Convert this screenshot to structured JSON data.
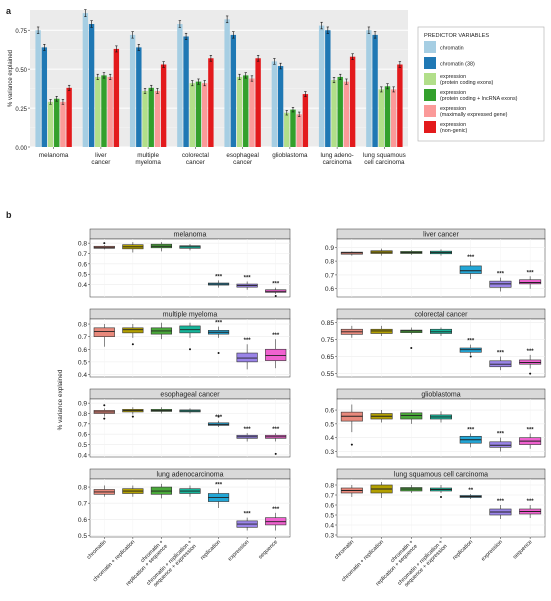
{
  "panel_a": {
    "label": "a",
    "ylabel": "% variance explained",
    "legend_title": "PREDICTOR VARIABLES",
    "legend_items": [
      {
        "name": "chromatin",
        "color": "#a6cee3"
      },
      {
        "name": "chromatin (38)",
        "color": "#1f78b4"
      },
      {
        "name": "expression\n(protein coding exons)",
        "color": "#b2df8a"
      },
      {
        "name": "expression\n(protein coding + lncRNA exons)",
        "color": "#33a02c"
      },
      {
        "name": "expression\n(maximally expressed gene)",
        "color": "#fb9a99"
      },
      {
        "name": "expression\n(non-genic)",
        "color": "#e31a1c"
      }
    ]
  },
  "panel_b": {
    "label": "b",
    "ylabel": "% variance explained",
    "groups": [
      "chromatin",
      "chromatin + replication",
      "chromatin +\nreplication + sequence",
      "chromatin + replication +\nsequence + expression",
      "replication",
      "expression",
      "sequence"
    ],
    "group_colors": [
      "#e8897c",
      "#b3a000",
      "#4aa83a",
      "#16b59a",
      "#22a6d6",
      "#9a84e8",
      "#f062d0"
    ],
    "sig_mark": "***",
    "sig_mark_lsc_replication": "**"
  },
  "chart_data": [
    {
      "type": "bar",
      "title": "",
      "ylabel": "% variance explained",
      "ylim": [
        0,
        0.88
      ],
      "yticks": [
        "0.00",
        "0.25",
        "0.50",
        "0.75"
      ],
      "categories": [
        "melanoma",
        "liver\ncancer",
        "multiple\nmyeloma",
        "colorectal\ncancer",
        "esophageal\ncancer",
        "glioblastoma",
        "lung adeno-\ncarcinoma",
        "lung squamous\ncell carcinoma"
      ],
      "series": [
        {
          "name": "chromatin",
          "values": [
            0.75,
            0.86,
            0.72,
            0.79,
            0.82,
            0.55,
            0.78,
            0.75
          ]
        },
        {
          "name": "chromatin (38)",
          "values": [
            0.64,
            0.79,
            0.64,
            0.71,
            0.72,
            0.52,
            0.75,
            0.72
          ]
        },
        {
          "name": "expression (protein coding exons)",
          "values": [
            0.29,
            0.45,
            0.36,
            0.41,
            0.45,
            0.22,
            0.43,
            0.37
          ]
        },
        {
          "name": "expression (protein coding + lncRNA exons)",
          "values": [
            0.31,
            0.46,
            0.38,
            0.42,
            0.46,
            0.24,
            0.45,
            0.39
          ]
        },
        {
          "name": "expression (maximally expressed gene)",
          "values": [
            0.29,
            0.45,
            0.36,
            0.41,
            0.44,
            0.21,
            0.42,
            0.37
          ]
        },
        {
          "name": "expression (non-genic)",
          "values": [
            0.38,
            0.63,
            0.53,
            0.57,
            0.57,
            0.34,
            0.58,
            0.53
          ]
        }
      ],
      "legend": "right",
      "grid": true
    },
    {
      "type": "box",
      "panels": [
        {
          "title": "melanoma",
          "yticks": [
            "0.4",
            "0.5",
            "0.6",
            "0.7",
            "0.8"
          ],
          "ylim": [
            0.28,
            0.84
          ],
          "boxes": [
            {
              "min": 0.74,
              "q1": 0.75,
              "median": 0.76,
              "q3": 0.77,
              "max": 0.78,
              "outliers": [
                0.8
              ]
            },
            {
              "min": 0.71,
              "q1": 0.745,
              "median": 0.765,
              "q3": 0.785,
              "max": 0.81,
              "outliers": []
            },
            {
              "min": 0.72,
              "q1": 0.755,
              "median": 0.77,
              "q3": 0.79,
              "max": 0.81,
              "outliers": []
            },
            {
              "min": 0.73,
              "q1": 0.75,
              "median": 0.765,
              "q3": 0.775,
              "max": 0.79,
              "outliers": []
            },
            {
              "min": 0.37,
              "q1": 0.395,
              "median": 0.405,
              "q3": 0.415,
              "max": 0.44,
              "outliers": []
            },
            {
              "min": 0.35,
              "q1": 0.375,
              "median": 0.39,
              "q3": 0.405,
              "max": 0.43,
              "outliers": []
            },
            {
              "min": 0.31,
              "q1": 0.325,
              "median": 0.335,
              "q3": 0.35,
              "max": 0.37,
              "outliers": [
                0.29
              ]
            }
          ]
        },
        {
          "title": "liver cancer",
          "yticks": [
            "0.6",
            "0.7",
            "0.8",
            "0.9"
          ],
          "ylim": [
            0.54,
            0.96
          ],
          "boxes": [
            {
              "min": 0.84,
              "q1": 0.85,
              "median": 0.86,
              "q3": 0.865,
              "max": 0.87,
              "outliers": []
            },
            {
              "min": 0.84,
              "q1": 0.855,
              "median": 0.865,
              "q3": 0.875,
              "max": 0.89,
              "outliers": []
            },
            {
              "min": 0.845,
              "q1": 0.855,
              "median": 0.862,
              "q3": 0.87,
              "max": 0.88,
              "outliers": []
            },
            {
              "min": 0.84,
              "q1": 0.853,
              "median": 0.862,
              "q3": 0.872,
              "max": 0.885,
              "outliers": []
            },
            {
              "min": 0.67,
              "q1": 0.71,
              "median": 0.73,
              "q3": 0.765,
              "max": 0.8,
              "outliers": []
            },
            {
              "min": 0.58,
              "q1": 0.61,
              "median": 0.635,
              "q3": 0.655,
              "max": 0.68,
              "outliers": []
            },
            {
              "min": 0.6,
              "q1": 0.635,
              "median": 0.645,
              "q3": 0.665,
              "max": 0.69,
              "outliers": []
            }
          ]
        },
        {
          "title": "multiple myeloma",
          "yticks": [
            "0.4",
            "0.5",
            "0.6",
            "0.7",
            "0.8"
          ],
          "ylim": [
            0.38,
            0.84
          ],
          "boxes": [
            {
              "min": 0.62,
              "q1": 0.7,
              "median": 0.74,
              "q3": 0.77,
              "max": 0.8,
              "outliers": []
            },
            {
              "min": 0.69,
              "q1": 0.73,
              "median": 0.755,
              "q3": 0.77,
              "max": 0.8,
              "outliers": [
                0.64
              ]
            },
            {
              "min": 0.68,
              "q1": 0.72,
              "median": 0.745,
              "q3": 0.77,
              "max": 0.81,
              "outliers": []
            },
            {
              "min": 0.69,
              "q1": 0.73,
              "median": 0.755,
              "q3": 0.785,
              "max": 0.81,
              "outliers": [
                0.6
              ]
            },
            {
              "min": 0.69,
              "q1": 0.72,
              "median": 0.735,
              "q3": 0.75,
              "max": 0.78,
              "outliers": [
                0.57
              ]
            },
            {
              "min": 0.44,
              "q1": 0.5,
              "median": 0.53,
              "q3": 0.57,
              "max": 0.64,
              "outliers": []
            },
            {
              "min": 0.45,
              "q1": 0.51,
              "median": 0.55,
              "q3": 0.6,
              "max": 0.68,
              "outliers": []
            }
          ]
        },
        {
          "title": "colorectal cancer",
          "yticks": [
            "0.55",
            "0.65",
            "0.75",
            "0.85"
          ],
          "ylim": [
            0.53,
            0.87
          ],
          "boxes": [
            {
              "min": 0.76,
              "q1": 0.78,
              "median": 0.795,
              "q3": 0.81,
              "max": 0.83,
              "outliers": []
            },
            {
              "min": 0.77,
              "q1": 0.785,
              "median": 0.8,
              "q3": 0.81,
              "max": 0.83,
              "outliers": []
            },
            {
              "min": 0.78,
              "q1": 0.79,
              "median": 0.8,
              "q3": 0.805,
              "max": 0.82,
              "outliers": [
                0.7
              ]
            },
            {
              "min": 0.77,
              "q1": 0.785,
              "median": 0.795,
              "q3": 0.81,
              "max": 0.82,
              "outliers": []
            },
            {
              "min": 0.66,
              "q1": 0.675,
              "median": 0.69,
              "q3": 0.7,
              "max": 0.72,
              "outliers": [
                0.65
              ]
            },
            {
              "min": 0.57,
              "q1": 0.59,
              "median": 0.605,
              "q3": 0.625,
              "max": 0.65,
              "outliers": []
            },
            {
              "min": 0.58,
              "q1": 0.605,
              "median": 0.615,
              "q3": 0.63,
              "max": 0.66,
              "outliers": [
                0.55
              ]
            }
          ]
        },
        {
          "title": "esophageal cancer",
          "yticks": [
            "0.4",
            "0.5",
            "0.6",
            "0.7",
            "0.8",
            "0.9"
          ],
          "ylim": [
            0.38,
            0.94
          ],
          "boxes": [
            {
              "min": 0.77,
              "q1": 0.8,
              "median": 0.815,
              "q3": 0.83,
              "max": 0.85,
              "outliers": [
                0.88,
                0.75
              ]
            },
            {
              "min": 0.79,
              "q1": 0.815,
              "median": 0.83,
              "q3": 0.84,
              "max": 0.86,
              "outliers": [
                0.77
              ]
            },
            {
              "min": 0.8,
              "q1": 0.82,
              "median": 0.83,
              "q3": 0.84,
              "max": 0.86,
              "outliers": []
            },
            {
              "min": 0.8,
              "q1": 0.815,
              "median": 0.825,
              "q3": 0.835,
              "max": 0.85,
              "outliers": []
            },
            {
              "min": 0.67,
              "q1": 0.685,
              "median": 0.695,
              "q3": 0.71,
              "max": 0.73,
              "outliers": [
                0.77
              ]
            },
            {
              "min": 0.53,
              "q1": 0.56,
              "median": 0.575,
              "q3": 0.59,
              "max": 0.61,
              "outliers": []
            },
            {
              "min": 0.53,
              "q1": 0.56,
              "median": 0.575,
              "q3": 0.59,
              "max": 0.61,
              "outliers": [
                0.41
              ]
            }
          ]
        },
        {
          "title": "glioblastoma",
          "yticks": [
            "0.3",
            "0.4",
            "0.5",
            "0.6"
          ],
          "ylim": [
            0.26,
            0.68
          ],
          "boxes": [
            {
              "min": 0.44,
              "q1": 0.52,
              "median": 0.555,
              "q3": 0.585,
              "max": 0.64,
              "outliers": [
                0.35
              ]
            },
            {
              "min": 0.51,
              "q1": 0.535,
              "median": 0.555,
              "q3": 0.575,
              "max": 0.6,
              "outliers": []
            },
            {
              "min": 0.5,
              "q1": 0.535,
              "median": 0.56,
              "q3": 0.58,
              "max": 0.6,
              "outliers": []
            },
            {
              "min": 0.51,
              "q1": 0.535,
              "median": 0.55,
              "q3": 0.565,
              "max": 0.59,
              "outliers": []
            },
            {
              "min": 0.33,
              "q1": 0.36,
              "median": 0.385,
              "q3": 0.41,
              "max": 0.43,
              "outliers": []
            },
            {
              "min": 0.3,
              "q1": 0.33,
              "median": 0.345,
              "q3": 0.37,
              "max": 0.4,
              "outliers": []
            },
            {
              "min": 0.32,
              "q1": 0.35,
              "median": 0.375,
              "q3": 0.4,
              "max": 0.43,
              "outliers": []
            }
          ]
        },
        {
          "title": "lung adenocarcinoma",
          "yticks": [
            "0.5",
            "0.6",
            "0.7",
            "0.8"
          ],
          "ylim": [
            0.49,
            0.85
          ],
          "boxes": [
            {
              "min": 0.74,
              "q1": 0.755,
              "median": 0.77,
              "q3": 0.785,
              "max": 0.81,
              "outliers": []
            },
            {
              "min": 0.74,
              "q1": 0.76,
              "median": 0.775,
              "q3": 0.79,
              "max": 0.81,
              "outliers": []
            },
            {
              "min": 0.73,
              "q1": 0.755,
              "median": 0.775,
              "q3": 0.8,
              "max": 0.82,
              "outliers": []
            },
            {
              "min": 0.74,
              "q1": 0.76,
              "median": 0.775,
              "q3": 0.79,
              "max": 0.81,
              "outliers": []
            },
            {
              "min": 0.67,
              "q1": 0.71,
              "median": 0.735,
              "q3": 0.76,
              "max": 0.79,
              "outliers": []
            },
            {
              "min": 0.53,
              "q1": 0.55,
              "median": 0.57,
              "q3": 0.59,
              "max": 0.61,
              "outliers": []
            },
            {
              "min": 0.53,
              "q1": 0.565,
              "median": 0.585,
              "q3": 0.61,
              "max": 0.64,
              "outliers": []
            }
          ]
        },
        {
          "title": "lung squamous cell carcinoma",
          "yticks": [
            "0.3",
            "0.4",
            "0.5",
            "0.6",
            "0.7",
            "0.8"
          ],
          "ylim": [
            0.28,
            0.86
          ],
          "boxes": [
            {
              "min": 0.68,
              "q1": 0.72,
              "median": 0.745,
              "q3": 0.77,
              "max": 0.8,
              "outliers": []
            },
            {
              "min": 0.67,
              "q1": 0.72,
              "median": 0.76,
              "q3": 0.8,
              "max": 0.83,
              "outliers": []
            },
            {
              "min": 0.72,
              "q1": 0.74,
              "median": 0.76,
              "q3": 0.775,
              "max": 0.8,
              "outliers": []
            },
            {
              "min": 0.72,
              "q1": 0.74,
              "median": 0.755,
              "q3": 0.77,
              "max": 0.8,
              "outliers": [
                0.68
              ]
            },
            {
              "min": 0.66,
              "q1": 0.675,
              "median": 0.685,
              "q3": 0.695,
              "max": 0.71,
              "outliers": []
            },
            {
              "min": 0.46,
              "q1": 0.5,
              "median": 0.53,
              "q3": 0.56,
              "max": 0.6,
              "outliers": []
            },
            {
              "min": 0.47,
              "q1": 0.51,
              "median": 0.535,
              "q3": 0.56,
              "max": 0.6,
              "outliers": []
            }
          ]
        }
      ]
    }
  ]
}
